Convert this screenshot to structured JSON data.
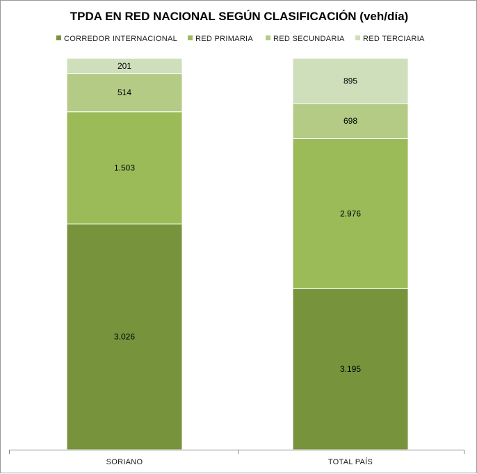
{
  "chart_data": {
    "type": "bar",
    "stacked": true,
    "normalized_to_100_percent": true,
    "title": "TPDA EN RED NACIONAL SEGÚN CLASIFICACIÓN (veh/día)",
    "categories": [
      "SORIANO",
      "TOTAL PAÍS"
    ],
    "series": [
      {
        "name": "CORREDOR INTERNACIONAL",
        "values": [
          3026,
          3195
        ],
        "labels": [
          "3.026",
          "3.195"
        ],
        "color": "#77933c"
      },
      {
        "name": "RED PRIMARIA",
        "values": [
          1503,
          2976
        ],
        "labels": [
          "1.503",
          "2.976"
        ],
        "color": "#9bbb59"
      },
      {
        "name": "RED SECUNDARIA",
        "values": [
          514,
          698
        ],
        "labels": [
          "514",
          "698"
        ],
        "color": "#b3cb85"
      },
      {
        "name": "RED TERCIARIA",
        "values": [
          201,
          895
        ],
        "labels": [
          "201",
          "895"
        ],
        "color": "#cfdebb"
      }
    ],
    "legend_position": "top",
    "grid": false,
    "xlabel": "",
    "ylabel": ""
  }
}
